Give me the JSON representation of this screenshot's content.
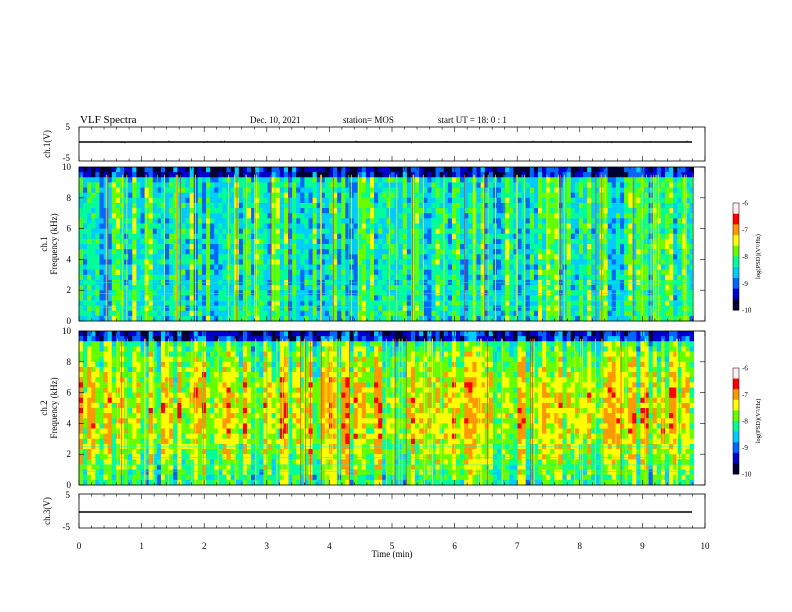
{
  "header": {
    "title": "VLF Spectra",
    "date": "Dec. 10, 2021",
    "station": "station= MOS",
    "start": "start  UT =   18: 0  : 1"
  },
  "chart_data": [
    {
      "type": "line",
      "name": "ch1-voltage",
      "ylabel": "ch.1(V)",
      "ylim": [
        -5,
        5
      ],
      "yticks": [
        "5",
        "-5"
      ],
      "xlim": [
        0,
        10
      ],
      "series": [
        {
          "x": [
            0,
            9.8
          ],
          "y": [
            0,
            0
          ]
        }
      ]
    },
    {
      "type": "heatmap",
      "name": "ch1-spectrogram",
      "ylabel_top": "ch.1",
      "ylabel": "Frequency (kHz)",
      "ylim": [
        0,
        10
      ],
      "yticks": [
        "0",
        "2",
        "4",
        "6",
        "8",
        "10"
      ],
      "xlim": [
        0,
        9.82
      ],
      "colorbar": {
        "label": "log(PSD)(V²/Hz)",
        "range": [
          -10,
          -6
        ],
        "ticks": [
          "-6",
          "-7",
          "-8",
          "-9",
          "-10"
        ]
      },
      "colors": [
        "#000033",
        "#0000cc",
        "#0066ff",
        "#00ccff",
        "#00ff99",
        "#66ff00",
        "#ffff00",
        "#ff9900",
        "#ff0000",
        "#ffeeee"
      ]
    },
    {
      "type": "heatmap",
      "name": "ch2-spectrogram",
      "ylabel_top": "ch.2",
      "ylabel": "Frequency (kHz)",
      "ylim": [
        0,
        10
      ],
      "yticks": [
        "0",
        "2",
        "4",
        "6",
        "8",
        "10"
      ],
      "xlim": [
        0,
        9.82
      ],
      "colorbar": {
        "label": "log(PSD)(V²/Hz)",
        "range": [
          -10,
          -6
        ],
        "ticks": [
          "-6",
          "-7",
          "-8",
          "-9",
          "-10"
        ]
      },
      "colors": [
        "#000033",
        "#0000cc",
        "#0066ff",
        "#00ccff",
        "#00ff99",
        "#66ff00",
        "#ffff00",
        "#ff9900",
        "#ff0000",
        "#ffeeee"
      ]
    },
    {
      "type": "line",
      "name": "ch3-voltage",
      "ylabel": "ch.3(V)",
      "ylim": [
        -5,
        5
      ],
      "yticks": [
        "5",
        "-5"
      ],
      "xlim": [
        0,
        10
      ],
      "xlabel": "Time  (min)",
      "xticks": [
        "0",
        "1",
        "2",
        "3",
        "4",
        "5",
        "6",
        "7",
        "8",
        "9",
        "10"
      ],
      "series": [
        {
          "x": [
            0,
            9.8
          ],
          "y": [
            0,
            0
          ]
        }
      ]
    }
  ]
}
